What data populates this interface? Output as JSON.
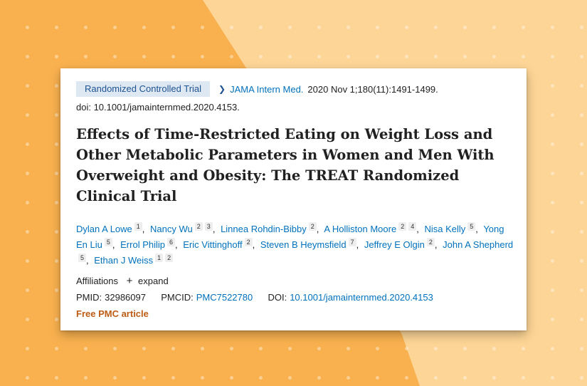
{
  "background": {
    "primary_color": "#f9b14f",
    "secondary_color": "#fdd596"
  },
  "badge": "Randomized Controlled Trial",
  "journal": {
    "name": "JAMA Intern Med.",
    "citation": "2020 Nov 1;180(11):1491-1499."
  },
  "doi_line": "doi: 10.1001/jamainternmed.2020.4153.",
  "title": "Effects of Time-Restricted Eating on Weight Loss and Other Metabolic Parameters in Women and Men With Overweight and Obesity: The TREAT Randomized Clinical Trial",
  "authors": [
    {
      "name": "Dylan A Lowe",
      "affils": [
        "1"
      ]
    },
    {
      "name": "Nancy Wu",
      "affils": [
        "2",
        "3"
      ]
    },
    {
      "name": "Linnea Rohdin-Bibby",
      "affils": [
        "2"
      ]
    },
    {
      "name": "A Holliston Moore",
      "affils": [
        "2",
        "4"
      ]
    },
    {
      "name": "Nisa Kelly",
      "affils": [
        "5"
      ]
    },
    {
      "name": "Yong En Liu",
      "affils": [
        "5"
      ]
    },
    {
      "name": "Errol Philip",
      "affils": [
        "6"
      ]
    },
    {
      "name": "Eric Vittinghoff",
      "affils": [
        "2"
      ]
    },
    {
      "name": "Steven B Heymsfield",
      "affils": [
        "7"
      ]
    },
    {
      "name": "Jeffrey E Olgin",
      "affils": [
        "2"
      ]
    },
    {
      "name": "John A Shepherd",
      "affils": [
        "5"
      ]
    },
    {
      "name": "Ethan J Weiss",
      "affils": [
        "1",
        "2"
      ]
    }
  ],
  "affiliations": {
    "label": "Affiliations",
    "expand_icon": "plus-icon",
    "expand_label": "expand"
  },
  "ids": {
    "pmid_label": "PMID:",
    "pmid": "32986097",
    "pmcid_label": "PMCID:",
    "pmcid": "PMC7522780",
    "doi_label": "DOI:",
    "doi": "10.1001/jamainternmed.2020.4153"
  },
  "free_pmc": "Free PMC article",
  "colors": {
    "link": "#0071bc",
    "badge_bg": "#dde8f2",
    "free_pmc": "#bd5c14"
  }
}
